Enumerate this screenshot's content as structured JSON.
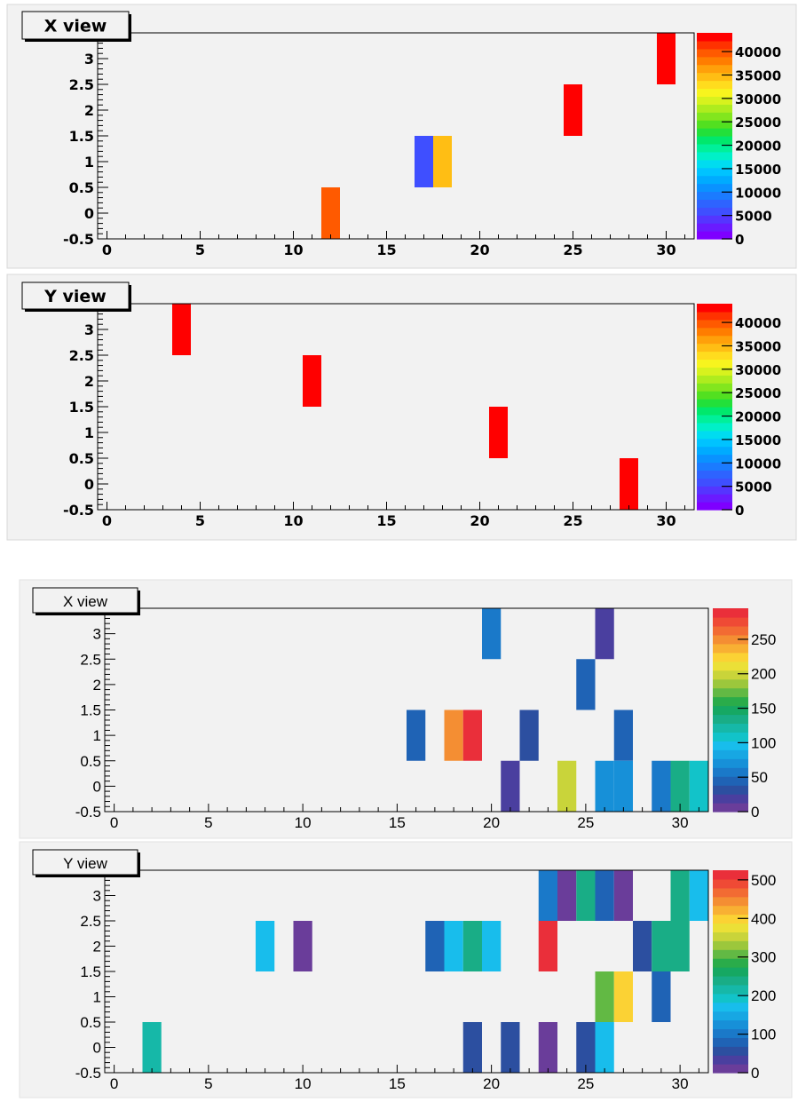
{
  "chart_data": [
    {
      "type": "heatmap",
      "title": "X view",
      "xlim": [
        -0.5,
        31.5
      ],
      "ylim": [
        -0.5,
        3.5
      ],
      "x_ticks": [
        0,
        5,
        10,
        15,
        20,
        25,
        30
      ],
      "y_ticks": [
        -0.5,
        0,
        0.5,
        1,
        1.5,
        2,
        2.5,
        3
      ],
      "y_tick_labels": [
        "-0.5",
        "0",
        "0.5",
        "1",
        "1.5",
        "2",
        "2.5",
        "3"
      ],
      "zlim": [
        0,
        44000
      ],
      "z_ticks": [
        0,
        5000,
        10000,
        15000,
        20000,
        25000,
        30000,
        35000,
        40000
      ],
      "cells": [
        {
          "x": 12,
          "y": 0,
          "z": 40500
        },
        {
          "x": 17,
          "y": 1,
          "z": 6500
        },
        {
          "x": 18,
          "y": 1,
          "z": 35500
        },
        {
          "x": 25,
          "y": 2,
          "z": 43500
        },
        {
          "x": 30,
          "y": 3,
          "z": 43500
        }
      ]
    },
    {
      "type": "heatmap",
      "title": "Y view",
      "xlim": [
        -0.5,
        31.5
      ],
      "ylim": [
        -0.5,
        3.5
      ],
      "x_ticks": [
        0,
        5,
        10,
        15,
        20,
        25,
        30
      ],
      "y_ticks": [
        -0.5,
        0,
        0.5,
        1,
        1.5,
        2,
        2.5,
        3
      ],
      "y_tick_labels": [
        "-0.5",
        "0",
        "0.5",
        "1",
        "1.5",
        "2",
        "2.5",
        "3"
      ],
      "zlim": [
        0,
        44000
      ],
      "z_ticks": [
        0,
        5000,
        10000,
        15000,
        20000,
        25000,
        30000,
        35000,
        40000
      ],
      "cells": [
        {
          "x": 4,
          "y": 3,
          "z": 43500
        },
        {
          "x": 11,
          "y": 2,
          "z": 43500
        },
        {
          "x": 21,
          "y": 1,
          "z": 43500
        },
        {
          "x": 28,
          "y": 0,
          "z": 43500
        }
      ]
    },
    {
      "type": "heatmap",
      "title": "X view",
      "xlim": [
        -0.5,
        31.5
      ],
      "ylim": [
        -0.5,
        3.5
      ],
      "x_ticks": [
        0,
        5,
        10,
        15,
        20,
        25,
        30
      ],
      "y_ticks": [
        -0.5,
        0,
        0.5,
        1,
        1.5,
        2,
        2.5,
        3
      ],
      "y_tick_labels": [
        "-0.5",
        "0",
        "0.5",
        "1",
        "1.5",
        "2",
        "2.5",
        "3"
      ],
      "zlim": [
        0,
        295
      ],
      "z_ticks": [
        0,
        50,
        100,
        150,
        200,
        250
      ],
      "cells": [
        {
          "x": 20,
          "y": 3,
          "z": 60
        },
        {
          "x": 26,
          "y": 3,
          "z": 15
        },
        {
          "x": 25,
          "y": 2,
          "z": 40
        },
        {
          "x": 16,
          "y": 1,
          "z": 40
        },
        {
          "x": 18,
          "y": 1,
          "z": 245
        },
        {
          "x": 19,
          "y": 1,
          "z": 285
        },
        {
          "x": 22,
          "y": 1,
          "z": 35
        },
        {
          "x": 27,
          "y": 1,
          "z": 40
        },
        {
          "x": 21,
          "y": 0,
          "z": 15
        },
        {
          "x": 24,
          "y": 0,
          "z": 195
        },
        {
          "x": 26,
          "y": 0,
          "z": 65
        },
        {
          "x": 27,
          "y": 0,
          "z": 65
        },
        {
          "x": 29,
          "y": 0,
          "z": 60
        },
        {
          "x": 30,
          "y": 0,
          "z": 140
        },
        {
          "x": 31,
          "y": 0,
          "z": 110
        }
      ]
    },
    {
      "type": "heatmap",
      "title": "Y view",
      "xlim": [
        -0.5,
        31.5
      ],
      "ylim": [
        -0.5,
        3.5
      ],
      "x_ticks": [
        0,
        5,
        10,
        15,
        20,
        25,
        30
      ],
      "y_ticks": [
        -0.5,
        0,
        0.5,
        1,
        1.5,
        2,
        2.5,
        3
      ],
      "y_tick_labels": [
        "-0.5",
        "0",
        "0.5",
        "1",
        "1.5",
        "2",
        "2.5",
        "3"
      ],
      "zlim": [
        0,
        525
      ],
      "z_ticks": [
        0,
        100,
        200,
        300,
        400,
        500
      ],
      "cells": [
        {
          "x": 23,
          "y": 3,
          "z": 110
        },
        {
          "x": 24,
          "y": 3,
          "z": 20
        },
        {
          "x": 25,
          "y": 3,
          "z": 250
        },
        {
          "x": 26,
          "y": 3,
          "z": 70
        },
        {
          "x": 27,
          "y": 3,
          "z": 20
        },
        {
          "x": 30,
          "y": 3,
          "z": 250
        },
        {
          "x": 31,
          "y": 3,
          "z": 180
        },
        {
          "x": 8,
          "y": 2,
          "z": 180
        },
        {
          "x": 10,
          "y": 2,
          "z": 20
        },
        {
          "x": 17,
          "y": 2,
          "z": 70
        },
        {
          "x": 18,
          "y": 2,
          "z": 180
        },
        {
          "x": 19,
          "y": 2,
          "z": 250
        },
        {
          "x": 20,
          "y": 2,
          "z": 180
        },
        {
          "x": 23,
          "y": 2,
          "z": 510
        },
        {
          "x": 28,
          "y": 2,
          "z": 50
        },
        {
          "x": 29,
          "y": 2,
          "z": 250
        },
        {
          "x": 30,
          "y": 2,
          "z": 250
        },
        {
          "x": 26,
          "y": 1,
          "z": 310
        },
        {
          "x": 27,
          "y": 1,
          "z": 390
        },
        {
          "x": 29,
          "y": 1,
          "z": 70
        },
        {
          "x": 2,
          "y": 0,
          "z": 210
        },
        {
          "x": 19,
          "y": 0,
          "z": 60
        },
        {
          "x": 21,
          "y": 0,
          "z": 60
        },
        {
          "x": 23,
          "y": 0,
          "z": 20
        },
        {
          "x": 25,
          "y": 0,
          "z": 60
        },
        {
          "x": 26,
          "y": 0,
          "z": 180
        }
      ]
    }
  ]
}
